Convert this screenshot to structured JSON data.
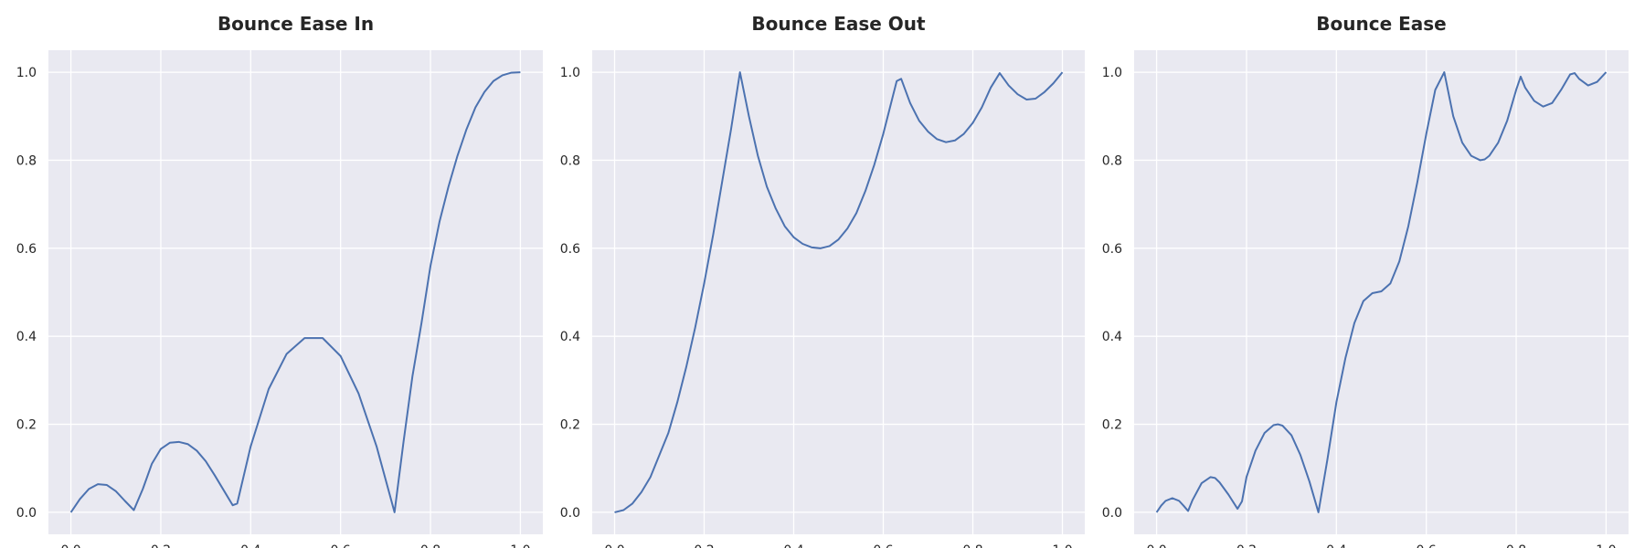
{
  "chart_data": [
    {
      "type": "line",
      "title": "Bounce Ease In",
      "xlabel": "",
      "ylabel": "",
      "xlim": [
        -0.05,
        1.05
      ],
      "ylim": [
        -0.05,
        1.05
      ],
      "xticks": [
        "0.0",
        "0.2",
        "0.4",
        "0.6",
        "0.8",
        "1.0"
      ],
      "yticks": [
        "0.0",
        "0.2",
        "0.4",
        "0.6",
        "0.8",
        "1.0"
      ],
      "grid": true,
      "color": "#4c72b0",
      "x": [
        0,
        0.02,
        0.04,
        0.06,
        0.08,
        0.1,
        0.12,
        0.14,
        0.16,
        0.18,
        0.2,
        0.22,
        0.24,
        0.26,
        0.28,
        0.3,
        0.32,
        0.34,
        0.36,
        0.37,
        0.4,
        0.44,
        0.48,
        0.52,
        0.56,
        0.6,
        0.64,
        0.68,
        0.72,
        0.74,
        0.76,
        0.78,
        0.8,
        0.82,
        0.84,
        0.86,
        0.88,
        0.9,
        0.92,
        0.94,
        0.96,
        0.98,
        1.0
      ],
      "values": [
        0,
        0.03,
        0.053,
        0.064,
        0.062,
        0.048,
        0.026,
        0.005,
        0.053,
        0.11,
        0.144,
        0.158,
        0.16,
        0.155,
        0.14,
        0.116,
        0.084,
        0.05,
        0.016,
        0.02,
        0.15,
        0.28,
        0.36,
        0.396,
        0.396,
        0.355,
        0.27,
        0.15,
        0.0,
        0.16,
        0.31,
        0.43,
        0.56,
        0.66,
        0.74,
        0.81,
        0.87,
        0.92,
        0.955,
        0.98,
        0.993,
        0.999,
        1.0
      ]
    },
    {
      "type": "line",
      "title": "Bounce Ease Out",
      "xlabel": "",
      "ylabel": "",
      "xlim": [
        -0.05,
        1.05
      ],
      "ylim": [
        -0.05,
        1.05
      ],
      "xticks": [
        "0.0",
        "0.2",
        "0.4",
        "0.6",
        "0.8",
        "1.0"
      ],
      "yticks": [
        "0.0",
        "0.2",
        "0.4",
        "0.6",
        "0.8",
        "1.0"
      ],
      "grid": true,
      "color": "#4c72b0",
      "x": [
        0,
        0.02,
        0.04,
        0.06,
        0.08,
        0.1,
        0.12,
        0.14,
        0.16,
        0.18,
        0.2,
        0.22,
        0.24,
        0.26,
        0.28,
        0.3,
        0.32,
        0.34,
        0.36,
        0.38,
        0.4,
        0.42,
        0.44,
        0.46,
        0.48,
        0.5,
        0.52,
        0.54,
        0.56,
        0.58,
        0.6,
        0.62,
        0.63,
        0.64,
        0.66,
        0.68,
        0.7,
        0.72,
        0.74,
        0.76,
        0.78,
        0.8,
        0.82,
        0.84,
        0.86,
        0.88,
        0.9,
        0.92,
        0.94,
        0.96,
        0.98,
        1.0
      ],
      "values": [
        0,
        0.005,
        0.02,
        0.046,
        0.08,
        0.13,
        0.18,
        0.25,
        0.33,
        0.42,
        0.52,
        0.63,
        0.75,
        0.87,
        1.0,
        0.9,
        0.81,
        0.74,
        0.69,
        0.65,
        0.625,
        0.61,
        0.602,
        0.6,
        0.605,
        0.62,
        0.645,
        0.68,
        0.73,
        0.79,
        0.86,
        0.94,
        0.98,
        0.985,
        0.93,
        0.89,
        0.865,
        0.848,
        0.841,
        0.845,
        0.86,
        0.885,
        0.92,
        0.965,
        0.998,
        0.97,
        0.95,
        0.938,
        0.94,
        0.955,
        0.975,
        1.0
      ]
    },
    {
      "type": "line",
      "title": "Bounce Ease",
      "xlabel": "",
      "ylabel": "",
      "xlim": [
        -0.05,
        1.05
      ],
      "ylim": [
        -0.05,
        1.05
      ],
      "xticks": [
        "0.0",
        "0.2",
        "0.4",
        "0.6",
        "0.8",
        "1.0"
      ],
      "yticks": [
        "0.0",
        "0.2",
        "0.4",
        "0.6",
        "0.8",
        "1.0"
      ],
      "grid": true,
      "color": "#4c72b0",
      "x": [
        0,
        0.01,
        0.02,
        0.035,
        0.05,
        0.06,
        0.07,
        0.08,
        0.1,
        0.12,
        0.13,
        0.14,
        0.16,
        0.18,
        0.19,
        0.2,
        0.22,
        0.24,
        0.26,
        0.27,
        0.28,
        0.3,
        0.32,
        0.34,
        0.36,
        0.38,
        0.4,
        0.42,
        0.44,
        0.46,
        0.48,
        0.5,
        0.52,
        0.54,
        0.56,
        0.58,
        0.6,
        0.62,
        0.64,
        0.66,
        0.68,
        0.7,
        0.72,
        0.73,
        0.74,
        0.76,
        0.78,
        0.8,
        0.81,
        0.82,
        0.84,
        0.86,
        0.88,
        0.9,
        0.92,
        0.93,
        0.94,
        0.96,
        0.98,
        1.0
      ],
      "values": [
        0,
        0.015,
        0.026,
        0.032,
        0.026,
        0.015,
        0.003,
        0.028,
        0.066,
        0.08,
        0.078,
        0.068,
        0.04,
        0.008,
        0.025,
        0.08,
        0.14,
        0.18,
        0.198,
        0.2,
        0.197,
        0.175,
        0.13,
        0.07,
        0.0,
        0.12,
        0.25,
        0.35,
        0.43,
        0.48,
        0.498,
        0.502,
        0.52,
        0.57,
        0.65,
        0.75,
        0.86,
        0.96,
        1.0,
        0.9,
        0.84,
        0.81,
        0.8,
        0.802,
        0.81,
        0.84,
        0.89,
        0.96,
        0.99,
        0.965,
        0.935,
        0.922,
        0.93,
        0.96,
        0.995,
        0.998,
        0.985,
        0.97,
        0.978,
        1.0
      ]
    }
  ]
}
